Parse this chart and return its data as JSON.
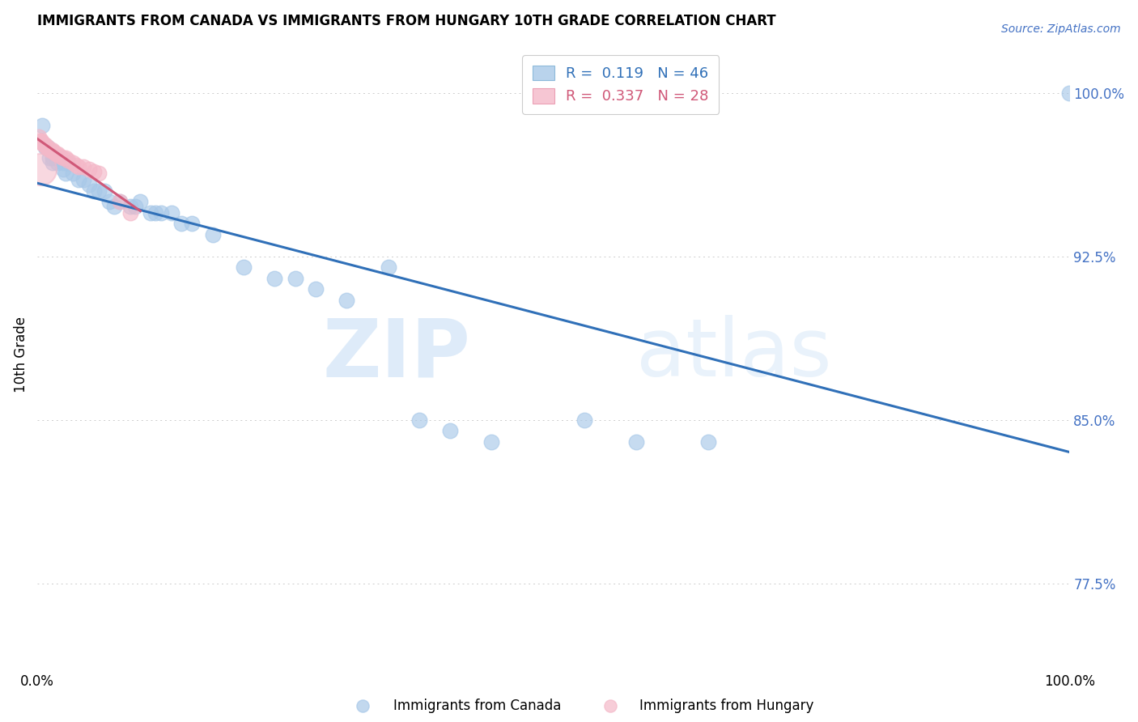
{
  "title": "IMMIGRANTS FROM CANADA VS IMMIGRANTS FROM HUNGARY 10TH GRADE CORRELATION CHART",
  "source": "Source: ZipAtlas.com",
  "ylabel": "10th Grade",
  "yticks": [
    0.775,
    0.85,
    0.925,
    1.0
  ],
  "ytick_labels": [
    "77.5%",
    "85.0%",
    "92.5%",
    "100.0%"
  ],
  "xlim": [
    0.0,
    1.0
  ],
  "ylim": [
    0.735,
    1.025
  ],
  "legend_canada": "R =  0.119   N = 46",
  "legend_hungary": "R =  0.337   N = 28",
  "canada_color": "#a8c8e8",
  "hungary_color": "#f4b8c8",
  "trendline_canada_color": "#3070b8",
  "trendline_hungary_color": "#d05878",
  "canada_x": [
    0.005,
    0.008,
    0.01,
    0.012,
    0.015,
    0.015,
    0.018,
    0.02,
    0.022,
    0.025,
    0.025,
    0.028,
    0.03,
    0.035,
    0.04,
    0.045,
    0.05,
    0.055,
    0.06,
    0.065,
    0.07,
    0.075,
    0.08,
    0.09,
    0.095,
    0.1,
    0.11,
    0.115,
    0.12,
    0.13,
    0.14,
    0.15,
    0.17,
    0.2,
    0.23,
    0.25,
    0.27,
    0.3,
    0.34,
    0.37,
    0.4,
    0.44,
    0.53,
    0.58,
    0.65,
    1.0
  ],
  "canada_y": [
    0.985,
    0.975,
    0.975,
    0.97,
    0.97,
    0.968,
    0.97,
    0.968,
    0.97,
    0.968,
    0.965,
    0.963,
    0.968,
    0.963,
    0.96,
    0.96,
    0.958,
    0.955,
    0.955,
    0.955,
    0.95,
    0.948,
    0.95,
    0.948,
    0.948,
    0.95,
    0.945,
    0.945,
    0.945,
    0.945,
    0.94,
    0.94,
    0.935,
    0.92,
    0.915,
    0.915,
    0.91,
    0.905,
    0.92,
    0.85,
    0.845,
    0.84,
    0.85,
    0.84,
    0.84,
    1.0
  ],
  "hungary_x": [
    0.002,
    0.003,
    0.004,
    0.005,
    0.006,
    0.007,
    0.008,
    0.009,
    0.01,
    0.012,
    0.014,
    0.015,
    0.016,
    0.018,
    0.02,
    0.022,
    0.025,
    0.028,
    0.03,
    0.035,
    0.038,
    0.04,
    0.045,
    0.05,
    0.055,
    0.06,
    0.08,
    0.09
  ],
  "hungary_y": [
    0.98,
    0.978,
    0.978,
    0.977,
    0.977,
    0.976,
    0.976,
    0.975,
    0.975,
    0.974,
    0.974,
    0.973,
    0.973,
    0.972,
    0.972,
    0.971,
    0.97,
    0.97,
    0.969,
    0.968,
    0.967,
    0.966,
    0.966,
    0.965,
    0.964,
    0.963,
    0.95,
    0.945
  ],
  "hungary_large_x": [
    0.0
  ],
  "hungary_large_y": [
    0.965
  ],
  "watermark_zip": "ZIP",
  "watermark_atlas": "atlas",
  "background_color": "#ffffff",
  "grid_color": "#cccccc",
  "tick_color": "#4472c4"
}
